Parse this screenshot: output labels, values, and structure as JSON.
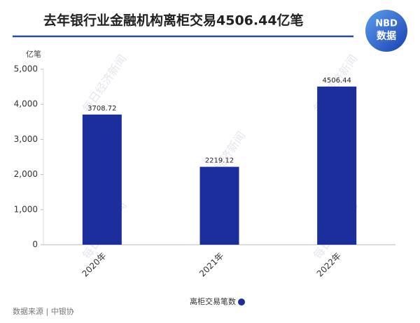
{
  "chart_data": {
    "type": "bar",
    "title": "去年银行业金融机构离柜交易4506.44亿笔",
    "y_unit": "亿笔",
    "categories": [
      "2020年",
      "2021年",
      "2022年"
    ],
    "series": [
      {
        "name": "离柜交易笔数",
        "color": "#1c2d9c",
        "values": [
          3708.72,
          2219.12,
          4506.44
        ]
      }
    ],
    "ylim": [
      0,
      5000
    ],
    "yticks": [
      0,
      {
        "value": 1000,
        "label": "1,000"
      },
      {
        "value": 2000,
        "label": "2,000"
      },
      {
        "value": 3000,
        "label": "3,000"
      },
      {
        "value": 4000,
        "label": "4,000"
      },
      {
        "value": 5000,
        "label": "5,000"
      }
    ],
    "legend": "bottom",
    "source": "数据来源 | 中银协",
    "logo": {
      "line1": "NBD",
      "line2": "数据"
    },
    "watermark": "每日经济新闻"
  }
}
